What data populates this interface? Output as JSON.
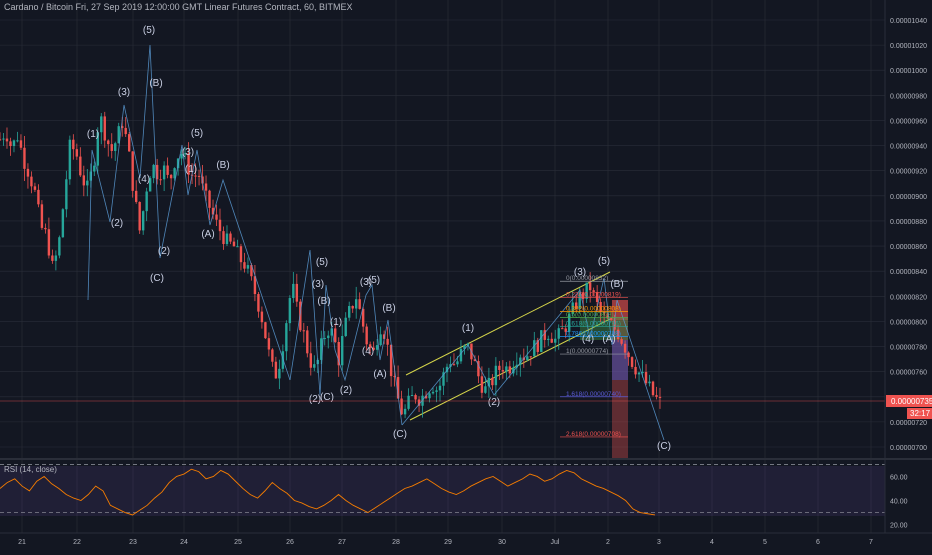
{
  "header": {
    "title": "Cardano / Bitcoin Fri, 27 Sep 2019 12:00:00 GMT Linear Futures Contract, 60, BITMEX"
  },
  "price_tag": {
    "value": "0.00000735",
    "countdown": "32:17"
  },
  "rsi": {
    "title": "RSI (14, close)",
    "ticks": [
      "60.00",
      "40.00",
      "20.00"
    ],
    "upper_band": 70,
    "lower_band": 30,
    "series": [
      50,
      55,
      58,
      52,
      48,
      56,
      60,
      54,
      50,
      45,
      42,
      40,
      45,
      52,
      48,
      36,
      33,
      30,
      28,
      32,
      36,
      42,
      47,
      55,
      60,
      62,
      66,
      64,
      58,
      60,
      65,
      62,
      56,
      50,
      45,
      42,
      48,
      55,
      50,
      46,
      40,
      38,
      35,
      33,
      36,
      40,
      45,
      40,
      36,
      33,
      30,
      34,
      38,
      42,
      46,
      50,
      52,
      55,
      58,
      54,
      50,
      47,
      45,
      48,
      52,
      55,
      58,
      60,
      56,
      52,
      55,
      58,
      62,
      60,
      56,
      58,
      62,
      65,
      63,
      58,
      55,
      52,
      50,
      47,
      44,
      40,
      33,
      30,
      29,
      28
    ]
  },
  "chart_data": {
    "type": "candlestick",
    "title": "Cardano / Bitcoin Fri, 27 Sep 2019 12:00:00 GMT Linear Futures Contract, 60, BITMEX",
    "ylim": [
      6.96e-06,
      1.05e-05
    ],
    "x_tick_labels": [
      "21",
      "22",
      "23",
      "24",
      "25",
      "26",
      "27",
      "28",
      "29",
      "30",
      "Jul",
      "2",
      "3",
      "4",
      "5",
      "6",
      "7"
    ],
    "y_tick_labels": [
      "0.00001040",
      "0.00001020",
      "0.00001000",
      "0.00000980",
      "0.00000960",
      "0.00000940",
      "0.00000920",
      "0.00000900",
      "0.00000880",
      "0.00000860",
      "0.00000840",
      "0.00000820",
      "0.00000800",
      "0.00000780",
      "0.00000760",
      "0.00000740",
      "0.00000720",
      "0.00000700"
    ],
    "y_tick_values": [
      1.04e-05,
      1.02e-05,
      1e-05,
      9.8e-06,
      9.6e-06,
      9.4e-06,
      9.2e-06,
      9e-06,
      8.8e-06,
      8.6e-06,
      8.4e-06,
      8.2e-06,
      8e-06,
      7.8e-06,
      7.6e-06,
      7.4e-06,
      7.2e-06,
      7e-06
    ],
    "close_path": [
      9.45e-06,
      9.52e-06,
      9.38e-06,
      9.48e-06,
      9.3e-06,
      9.18e-06,
      9.02e-06,
      8.75e-06,
      8.68e-06,
      8.42e-06,
      8.58e-06,
      9e-06,
      9.4e-06,
      9.35e-06,
      9.15e-06,
      9.05e-06,
      9.25e-06,
      9.65e-06,
      9.5e-06,
      9.35e-06,
      9.45e-06,
      9.6e-06,
      9.35e-06,
      9e-06,
      8.7e-06,
      9.05e-06,
      9.25e-06,
      9.18e-06,
      9.22e-06,
      9.1e-06,
      9.3e-06,
      9.35e-06,
      9.25e-06,
      9.15e-06,
      9.18e-06,
      9e-06,
      8.9e-06,
      8.78e-06,
      8.7e-06,
      8.62e-06,
      8.6e-06,
      8.5e-06,
      8.45e-06,
      8.32e-06,
      8.18e-06,
      8e-06,
      7.75e-06,
      7.55e-06,
      7.7e-06,
      8e-06,
      8.3e-06,
      8.05e-06,
      7.9e-06,
      7.7e-06,
      7.6e-06,
      7.8e-06,
      7.95e-06,
      7.9e-06,
      7.7e-06,
      7.95e-06,
      8.1e-06,
      8.2e-06,
      8e-06,
      7.8e-06,
      7.75e-06,
      7.98e-06,
      7.9e-06,
      7.6e-06,
      7.4e-06,
      7.25e-06,
      7.35e-06,
      7.42e-06,
      7.38e-06,
      7.45e-06,
      7.5e-06,
      7.45e-06,
      7.58e-06,
      7.7e-06,
      7.65e-06,
      7.75e-06,
      7.8e-06,
      7.7e-06,
      7.55e-06,
      7.45e-06,
      7.5e-06,
      7.6e-06,
      7.65e-06,
      7.62e-06,
      7.7e-06,
      7.75e-06,
      7.72e-06,
      7.78e-06,
      7.82e-06,
      7.88e-06,
      7.92e-06,
      7.85e-06,
      7.9e-06,
      7.98e-06,
      8.08e-06,
      8.18e-06,
      8.22e-06,
      8.28e-06,
      8.15e-06,
      8.05e-06,
      8e-06,
      7.95e-06,
      7.9e-06,
      7.8e-06,
      7.7e-06,
      7.62e-06,
      7.55e-06,
      7.48e-06,
      7.4e-06,
      7.35e-06
    ],
    "fib_levels": [
      {
        "label": "0(0.00000832)",
        "value": 8.32e-06
      },
      {
        "label": "0.236(0.00000819)",
        "value": 8.19e-06
      },
      {
        "label": "0.382(0.00000808)",
        "value": 8.08e-06
      },
      {
        "label": "0.5(0.00000803)",
        "value": 8.03e-06
      },
      {
        "label": "0.618(0.00000796)",
        "value": 7.96e-06
      },
      {
        "label": "0.786(0.00000788)",
        "value": 7.88e-06
      },
      {
        "label": "1(0.00000774)",
        "value": 7.74e-06
      },
      {
        "label": "1.618(0.00000740)",
        "value": 7.4e-06
      },
      {
        "label": "2.618(0.00000708)",
        "value": 7.08e-06
      }
    ],
    "wave_labels": [
      {
        "text": "(5)",
        "x": 149,
        "y": 33
      },
      {
        "text": "(B)",
        "x": 156,
        "y": 86
      },
      {
        "text": "(3)",
        "x": 124,
        "y": 95
      },
      {
        "text": "(1)",
        "x": 93,
        "y": 137
      },
      {
        "text": "(5)",
        "x": 197,
        "y": 136
      },
      {
        "text": "(3)",
        "x": 188,
        "y": 155
      },
      {
        "text": "(1)",
        "x": 191,
        "y": 172
      },
      {
        "text": "(B)",
        "x": 223,
        "y": 168
      },
      {
        "text": "(4)",
        "x": 144,
        "y": 182
      },
      {
        "text": "(2)",
        "x": 117,
        "y": 226
      },
      {
        "text": "(A)",
        "x": 208,
        "y": 237
      },
      {
        "text": "(2)",
        "x": 164,
        "y": 254
      },
      {
        "text": "(C)",
        "x": 157,
        "y": 281
      },
      {
        "text": "(5)",
        "x": 322,
        "y": 265
      },
      {
        "text": "(3)",
        "x": 318,
        "y": 287
      },
      {
        "text": "(B)",
        "x": 324,
        "y": 304
      },
      {
        "text": "(3)",
        "x": 366,
        "y": 285
      },
      {
        "text": "(5)",
        "x": 374,
        "y": 283
      },
      {
        "text": "(B)",
        "x": 389,
        "y": 311
      },
      {
        "text": "(1)",
        "x": 336,
        "y": 325
      },
      {
        "text": "(4)",
        "x": 368,
        "y": 354
      },
      {
        "text": "(A)",
        "x": 380,
        "y": 377
      },
      {
        "text": "(2)",
        "x": 346,
        "y": 393
      },
      {
        "text": "(C)",
        "x": 327,
        "y": 400
      },
      {
        "text": "(2)",
        "x": 315,
        "y": 402
      },
      {
        "text": "(C)",
        "x": 400,
        "y": 437
      },
      {
        "text": "(1)",
        "x": 468,
        "y": 331
      },
      {
        "text": "(2)",
        "x": 494,
        "y": 405
      },
      {
        "text": "(3)",
        "x": 580,
        "y": 275
      },
      {
        "text": "(5)",
        "x": 604,
        "y": 264
      },
      {
        "text": "(B)",
        "x": 617,
        "y": 287
      },
      {
        "text": "(4)",
        "x": 588,
        "y": 342
      },
      {
        "text": "(A)",
        "x": 609,
        "y": 342
      },
      {
        "text": "(C)",
        "x": 664,
        "y": 449
      }
    ]
  }
}
